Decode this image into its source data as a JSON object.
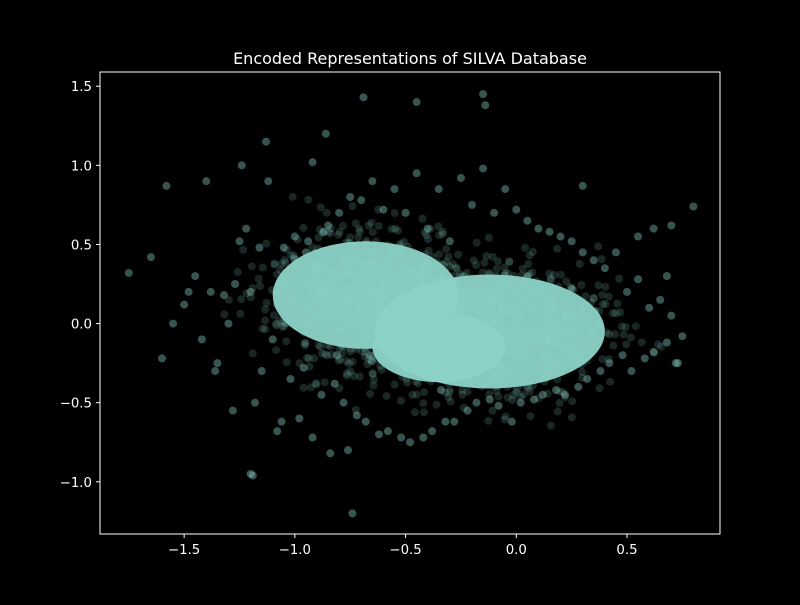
{
  "chart_data": {
    "type": "scatter",
    "title": "Encoded Representations of SILVA Database",
    "xlabel": "",
    "ylabel": "",
    "xlim": [
      -1.88,
      0.92
    ],
    "ylim": [
      -1.33,
      1.59
    ],
    "xticks": [
      -1.5,
      -1.0,
      -0.5,
      0.0,
      0.5
    ],
    "xtick_labels": [
      "−1.5",
      "−1.0",
      "−0.5",
      "0.0",
      "0.5"
    ],
    "yticks": [
      -1.0,
      -0.5,
      0.0,
      0.5,
      1.0,
      1.5
    ],
    "ytick_labels": [
      "−1.0",
      "−0.5",
      "0.0",
      "0.5",
      "1.0",
      "1.5"
    ],
    "grid": false,
    "legend": "none",
    "colors": {
      "background": "#000000",
      "axes": "#ffffff",
      "marker": "#8dd3c7"
    },
    "marker_alpha": 0.25,
    "series": [
      {
        "values_description": "dense cloud, representative sample of visible points",
        "x": [
          -1.75,
          -1.65,
          -1.58,
          -1.55,
          -1.5,
          -1.45,
          -1.42,
          -1.38,
          -1.35,
          -1.32,
          -1.3,
          -1.28,
          -1.25,
          -1.22,
          -1.2,
          -1.18,
          -1.15,
          -1.12,
          -1.1,
          -1.08,
          -1.05,
          -1.02,
          -1.0,
          -0.98,
          -0.95,
          -0.92,
          -0.9,
          -0.88,
          -0.85,
          -0.82,
          -0.8,
          -0.78,
          -0.75,
          -0.72,
          -0.7,
          -0.68,
          -0.65,
          -0.62,
          -0.6,
          -0.58,
          -0.55,
          -0.52,
          -0.5,
          -0.48,
          -0.45,
          -0.42,
          -0.4,
          -0.38,
          -0.35,
          -0.32,
          -0.3,
          -0.28,
          -0.25,
          -0.22,
          -0.2,
          -0.18,
          -0.15,
          -0.12,
          -0.1,
          -0.08,
          -0.05,
          -0.02,
          0.0,
          0.02,
          0.05,
          0.08,
          0.1,
          0.12,
          0.15,
          0.18,
          0.2,
          0.22,
          0.25,
          0.28,
          0.3,
          0.32,
          0.35,
          0.38,
          0.4,
          0.42,
          0.45,
          0.48,
          0.5,
          0.52,
          0.55,
          0.58,
          0.6,
          0.62,
          0.65,
          0.68,
          0.7,
          0.72,
          0.75,
          0.8,
          -1.2,
          -1.19,
          -0.84,
          -0.74,
          -0.76,
          -0.69,
          -0.45,
          -0.15,
          -0.14,
          -0.86,
          -0.92,
          -1.13,
          -1.24,
          -1.4,
          0.3,
          0.62,
          0.7,
          0.73,
          0.68,
          0.55,
          -1.6,
          -1.48,
          -1.36,
          -1.27,
          -1.16,
          -1.06,
          -0.96,
          -0.94,
          -0.87,
          -0.81,
          -0.66,
          -0.54,
          -0.44,
          -0.34,
          -0.24,
          -0.1,
          0.05,
          0.15,
          0.25,
          0.35
        ],
        "y": [
          0.32,
          0.42,
          0.87,
          0.0,
          0.12,
          0.3,
          -0.1,
          0.2,
          -0.25,
          0.18,
          0.0,
          -0.55,
          0.52,
          0.6,
          0.2,
          -0.5,
          -0.3,
          0.9,
          -0.1,
          -0.68,
          0.48,
          -0.35,
          0.55,
          -0.6,
          0.45,
          -0.72,
          0.35,
          -0.45,
          0.62,
          -0.38,
          0.7,
          -0.5,
          0.8,
          -0.58,
          0.78,
          -0.62,
          0.9,
          -0.7,
          0.72,
          -0.68,
          0.85,
          -0.72,
          0.7,
          -0.75,
          0.95,
          -0.72,
          0.6,
          -0.68,
          0.85,
          -0.62,
          0.52,
          -0.62,
          0.92,
          -0.55,
          0.75,
          -0.5,
          0.98,
          -0.48,
          0.7,
          -0.52,
          0.85,
          -0.62,
          0.72,
          -0.5,
          0.65,
          -0.48,
          0.6,
          -0.45,
          0.58,
          -0.42,
          0.55,
          -0.45,
          0.52,
          -0.4,
          0.45,
          -0.35,
          0.4,
          -0.3,
          0.35,
          -0.25,
          0.45,
          -0.2,
          0.2,
          -0.3,
          0.28,
          -0.22,
          0.1,
          -0.18,
          0.15,
          -0.12,
          0.05,
          -0.25,
          -0.08,
          0.74,
          -0.95,
          -0.96,
          -0.82,
          -1.2,
          -0.8,
          1.43,
          1.4,
          1.45,
          1.38,
          1.2,
          1.02,
          1.15,
          1.0,
          0.9,
          0.87,
          0.6,
          0.62,
          -0.25,
          0.3,
          0.55,
          -0.22,
          0.2,
          -0.3,
          0.25,
          0.48,
          -0.62,
          -0.28,
          0.52,
          0.58,
          -0.2,
          0.38,
          -0.25,
          0.32,
          -0.42,
          0.08,
          -0.35,
          0.3,
          -0.1,
          0.22,
          -0.08
        ]
      }
    ]
  }
}
